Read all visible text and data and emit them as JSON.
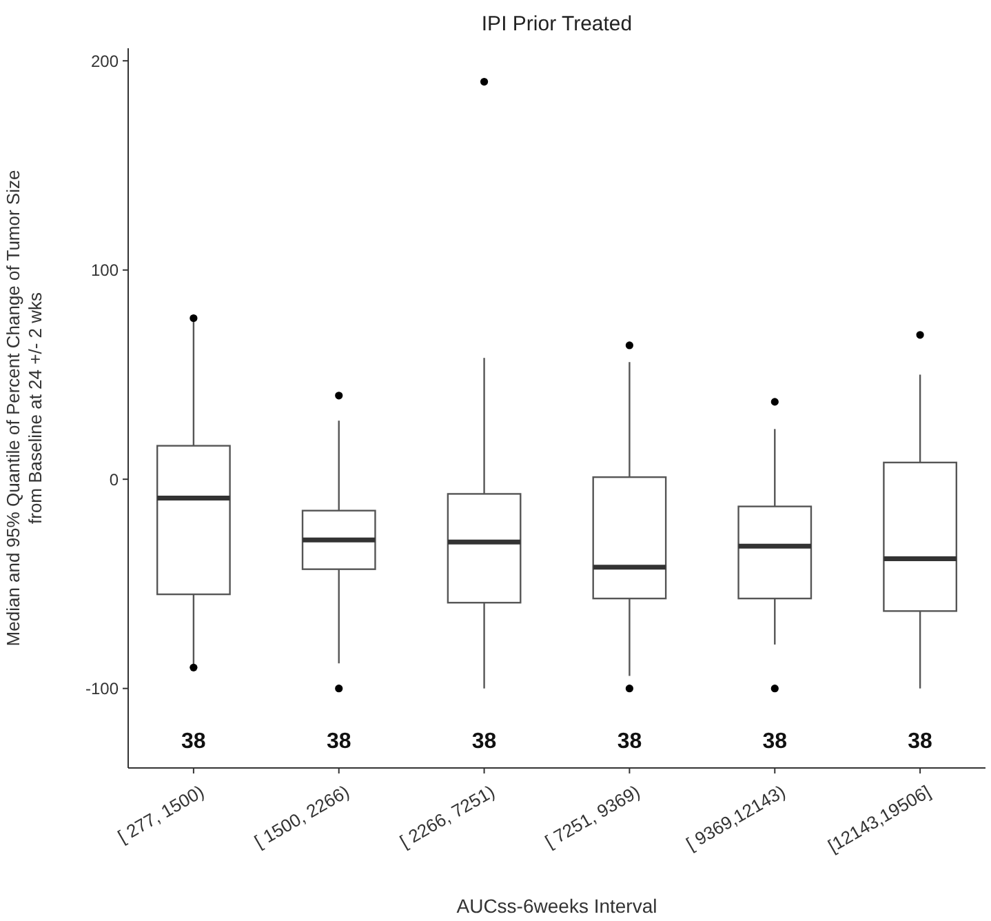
{
  "chart_data": {
    "type": "box",
    "title": "IPI Prior Treated",
    "xlabel": "AUCss-6weeks Interval",
    "ylabel": "Median and 95% Quantile of Percent Change of Tumor Size\nfrom Baseline at 24 +/- 2 wks",
    "categories": [
      "[ 277, 1500)",
      "[ 1500, 2266)",
      "[ 2266, 7251)",
      "[ 7251, 9369)",
      "[ 9369,12143)",
      "[12143,19506]"
    ],
    "boxes": [
      {
        "low": -89,
        "q1": -55,
        "median": -9,
        "q3": 16,
        "high": 76,
        "outliers": [
          77,
          -90
        ]
      },
      {
        "low": -88,
        "q1": -43,
        "median": -29,
        "q3": -15,
        "high": 28,
        "outliers": [
          40,
          -100
        ]
      },
      {
        "low": -100,
        "q1": -59,
        "median": -30,
        "q3": -7,
        "high": 58,
        "outliers": [
          190
        ]
      },
      {
        "low": -94,
        "q1": -57,
        "median": -42,
        "q3": 1,
        "high": 56,
        "outliers": [
          64,
          -100
        ]
      },
      {
        "low": -79,
        "q1": -57,
        "median": -32,
        "q3": -13,
        "high": 24,
        "outliers": [
          37,
          -100
        ]
      },
      {
        "low": -100,
        "q1": -63,
        "median": -38,
        "q3": 8,
        "high": 50,
        "outliers": [
          69
        ]
      }
    ],
    "color": "#555555",
    "ylim": [
      -138,
      206
    ],
    "yticks": [
      -100,
      0,
      100,
      200
    ],
    "grid": false,
    "annotations": [
      "38",
      "38",
      "38",
      "38",
      "38",
      "38"
    ]
  }
}
